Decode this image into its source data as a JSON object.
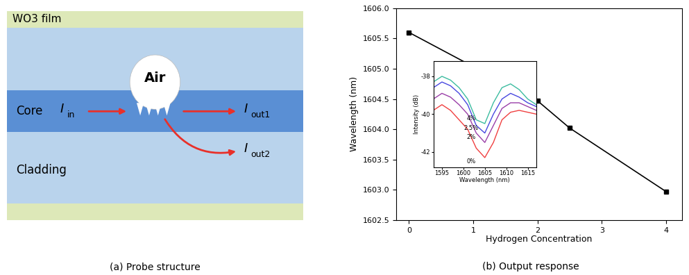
{
  "diagram": {
    "caption": "(a) Probe structure",
    "film": "WO3 film",
    "core": "Core",
    "cladding": "Cladding",
    "air": "Air",
    "signals": {
      "input": {
        "symbol": "I",
        "subscript": "in"
      },
      "output1": {
        "symbol": "I",
        "subscript": "out1"
      },
      "output2": {
        "symbol": "I",
        "subscript": "out2"
      }
    }
  },
  "chart_data": [
    {
      "type": "line",
      "caption": "(b) Output response",
      "x_label": "Hydrogen Concentration",
      "y_label": "Wavelength (nm)",
      "x": [
        0,
        2,
        2.5,
        4
      ],
      "values": [
        1605.6,
        1604.47,
        1604.02,
        1602.97
      ],
      "color": "#000000",
      "marker": "square",
      "xlim": [
        -0.2,
        4.25
      ],
      "ylim": [
        1602.5,
        1606.0
      ],
      "xticks": [
        0,
        1,
        2,
        3,
        4
      ],
      "yticks": [
        1602.5,
        1603.0,
        1603.5,
        1604.0,
        1604.5,
        1605.0,
        1605.5,
        1606.0
      ]
    },
    {
      "type": "line",
      "x_label": "Wavelength (nm)",
      "y_label": "Intensity (dB)",
      "x": [
        1593,
        1595,
        1597,
        1599,
        1601,
        1603,
        1605,
        1607,
        1609,
        1611,
        1613,
        1615,
        1617
      ],
      "series": [
        {
          "name": "0%",
          "color": "#f04040",
          "values": [
            -39.8,
            -39.5,
            -39.8,
            -40.3,
            -40.8,
            -41.8,
            -42.3,
            -41.5,
            -40.3,
            -39.9,
            -39.8,
            -39.9,
            -40.0
          ]
        },
        {
          "name": "2%",
          "color": "#9a3fa8",
          "values": [
            -39.2,
            -38.9,
            -39.1,
            -39.5,
            -40.0,
            -41.0,
            -41.5,
            -40.6,
            -39.7,
            -39.4,
            -39.4,
            -39.6,
            -39.8
          ]
        },
        {
          "name": "2.5%",
          "color": "#4848e0",
          "values": [
            -38.6,
            -38.3,
            -38.5,
            -38.9,
            -39.5,
            -40.6,
            -41.0,
            -40.0,
            -39.2,
            -38.9,
            -39.1,
            -39.4,
            -39.6
          ]
        },
        {
          "name": "4%",
          "color": "#3cbca0",
          "values": [
            -38.3,
            -38.0,
            -38.2,
            -38.6,
            -39.2,
            -40.3,
            -40.5,
            -39.4,
            -38.6,
            -38.4,
            -38.7,
            -39.2,
            -39.5
          ]
        }
      ],
      "xlim": [
        1593,
        1617
      ],
      "ylim": [
        -42.8,
        -37.2
      ],
      "xticks": [
        1595,
        1600,
        1605,
        1610,
        1615
      ],
      "yticks": [
        -42,
        -40,
        -38
      ]
    }
  ]
}
